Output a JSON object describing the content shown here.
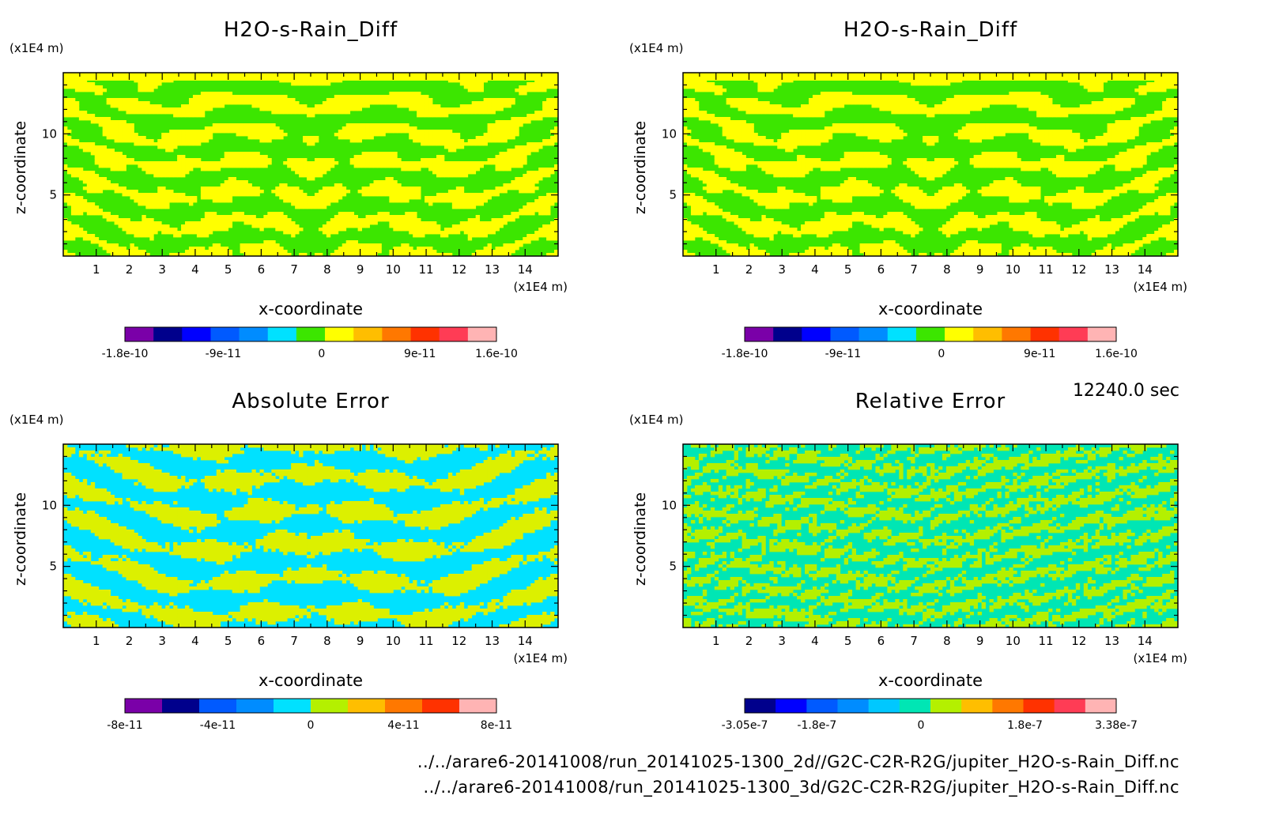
{
  "time_label": "12240.0 sec",
  "source_files": [
    "../../arare6-20141008/run_20141025-1300_2d//G2C-C2R-R2G/jupiter_H2O-s-Rain_Diff.nc",
    "../../arare6-20141008/run_20141025-1300_3d/G2C-C2R-R2G/jupiter_H2O-s-Rain_Diff.nc"
  ],
  "chart_data": [
    {
      "type": "heatmap",
      "title": "H2O-s-Rain_Diff",
      "xlabel": "x-coordinate",
      "ylabel": "z-coordinate",
      "x_unit": "(x1E4 m)",
      "y_unit": "(x1E4 m)",
      "xlim": [
        0,
        15
      ],
      "ylim": [
        0,
        15
      ],
      "x_ticks": [
        "1",
        "2",
        "3",
        "4",
        "5",
        "6",
        "7",
        "8",
        "9",
        "10",
        "11",
        "12",
        "13",
        "14"
      ],
      "y_ticks": [
        "5",
        "10"
      ],
      "colorbar": {
        "colors": [
          "#7a00a8",
          "#00008c",
          "#0000ff",
          "#005aff",
          "#008cff",
          "#00e1ff",
          "#3ce600",
          "#ffff00",
          "#ffbe00",
          "#ff7800",
          "#ff3200",
          "#ff3c55",
          "#ffb4b4"
        ],
        "tick_labels": [
          "-1.8e-10",
          "-9e-11",
          "0",
          "9e-11",
          "1.6e-10"
        ],
        "tick_values": [
          -1.8e-10,
          -9e-11,
          0,
          9e-11,
          1.6e-10
        ]
      },
      "palette": [
        "#3ce600",
        "#ffff00"
      ]
    },
    {
      "type": "heatmap",
      "title": "H2O-s-Rain_Diff",
      "xlabel": "x-coordinate",
      "ylabel": "z-coordinate",
      "x_unit": "(x1E4 m)",
      "y_unit": "(x1E4 m)",
      "xlim": [
        0,
        15
      ],
      "ylim": [
        0,
        15
      ],
      "x_ticks": [
        "1",
        "2",
        "3",
        "4",
        "5",
        "6",
        "7",
        "8",
        "9",
        "10",
        "11",
        "12",
        "13",
        "14"
      ],
      "y_ticks": [
        "5",
        "10"
      ],
      "colorbar": {
        "colors": [
          "#7a00a8",
          "#00008c",
          "#0000ff",
          "#005aff",
          "#008cff",
          "#00e1ff",
          "#3ce600",
          "#ffff00",
          "#ffbe00",
          "#ff7800",
          "#ff3200",
          "#ff3c55",
          "#ffb4b4"
        ],
        "tick_labels": [
          "-1.8e-10",
          "-9e-11",
          "0",
          "9e-11",
          "1.6e-10"
        ],
        "tick_values": [
          -1.8e-10,
          -9e-11,
          0,
          9e-11,
          1.6e-10
        ]
      },
      "palette": [
        "#3ce600",
        "#ffff00"
      ]
    },
    {
      "type": "heatmap",
      "title": "Absolute Error",
      "xlabel": "x-coordinate",
      "ylabel": "z-coordinate",
      "x_unit": "(x1E4 m)",
      "y_unit": "(x1E4 m)",
      "xlim": [
        0,
        15
      ],
      "ylim": [
        0,
        15
      ],
      "x_ticks": [
        "1",
        "2",
        "3",
        "4",
        "5",
        "6",
        "7",
        "8",
        "9",
        "10",
        "11",
        "12",
        "13",
        "14"
      ],
      "y_ticks": [
        "5",
        "10"
      ],
      "colorbar": {
        "colors": [
          "#7a00a8",
          "#00008c",
          "#005aff",
          "#008cff",
          "#00e1ff",
          "#b4f000",
          "#ffbe00",
          "#ff7800",
          "#ff3200",
          "#ffb4b4"
        ],
        "tick_labels": [
          "-8e-11",
          "-4e-11",
          "0",
          "4e-11",
          "8e-11"
        ],
        "tick_values": [
          -8e-11,
          -4e-11,
          0,
          4e-11,
          8e-11
        ]
      },
      "palette": [
        "#00e1ff",
        "#dcf000"
      ]
    },
    {
      "type": "heatmap",
      "title": "Relative Error",
      "xlabel": "x-coordinate",
      "ylabel": "z-coordinate",
      "x_unit": "(x1E4 m)",
      "y_unit": "(x1E4 m)",
      "xlim": [
        0,
        15
      ],
      "ylim": [
        0,
        15
      ],
      "x_ticks": [
        "1",
        "2",
        "3",
        "4",
        "5",
        "6",
        "7",
        "8",
        "9",
        "10",
        "11",
        "12",
        "13",
        "14"
      ],
      "y_ticks": [
        "5",
        "10"
      ],
      "colorbar": {
        "colors": [
          "#00008c",
          "#0000ff",
          "#005aff",
          "#008cff",
          "#00c8ff",
          "#00e6b4",
          "#b4f000",
          "#ffbe00",
          "#ff7800",
          "#ff3200",
          "#ff3c55",
          "#ffb4b4"
        ],
        "tick_labels": [
          "-3.05e-7",
          "-1.8e-7",
          "0",
          "1.8e-7",
          "3.38e-7"
        ],
        "tick_values": [
          -3.05e-07,
          -1.8e-07,
          0,
          1.8e-07,
          3.38e-07
        ]
      },
      "palette": [
        "#00e6b4",
        "#b4f000"
      ]
    }
  ]
}
